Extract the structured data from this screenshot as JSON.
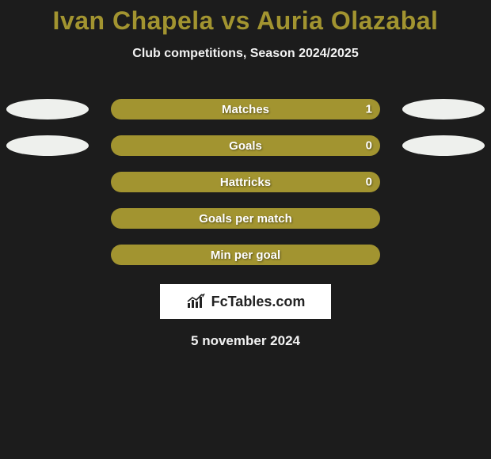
{
  "title": "Ivan Chapela vs Auria Olazabal",
  "subtitle": "Club competitions, Season 2024/2025",
  "date": "5 november 2024",
  "logo_text": "FcTables.com",
  "colors": {
    "background": "#1c1c1c",
    "title": "#a29430",
    "text": "#f2f2f2",
    "bar_track": "#1c1c1c",
    "left_fill": "#a29430",
    "right_fill": "#a29430",
    "ellipse_left": "#eef0ed",
    "ellipse_right": "#eef0ed",
    "logo_bg": "#ffffff",
    "logo_text_color": "#222222"
  },
  "rows": [
    {
      "label": "Matches",
      "left_value": "",
      "right_value": "1",
      "left_pct": 0,
      "right_pct": 100,
      "show_left_ellipse": true,
      "show_right_ellipse": true
    },
    {
      "label": "Goals",
      "left_value": "",
      "right_value": "0",
      "left_pct": 0,
      "right_pct": 100,
      "show_left_ellipse": true,
      "show_right_ellipse": true
    },
    {
      "label": "Hattricks",
      "left_value": "",
      "right_value": "0",
      "left_pct": 50,
      "right_pct": 50,
      "show_left_ellipse": false,
      "show_right_ellipse": false
    },
    {
      "label": "Goals per match",
      "left_value": "",
      "right_value": "",
      "left_pct": 50,
      "right_pct": 50,
      "show_left_ellipse": false,
      "show_right_ellipse": false
    },
    {
      "label": "Min per goal",
      "left_value": "",
      "right_value": "",
      "left_pct": 50,
      "right_pct": 50,
      "show_left_ellipse": false,
      "show_right_ellipse": false
    }
  ]
}
